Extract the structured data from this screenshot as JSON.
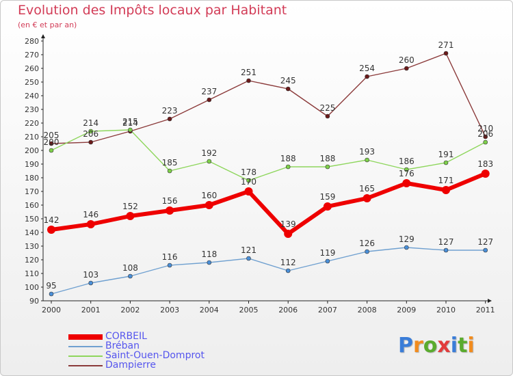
{
  "header": {
    "title": "Evolution des Impôts locaux par Habitant",
    "subtitle": "(en € et par an)"
  },
  "logo": {
    "text": "Proxiti",
    "colors": [
      "#3a7dd8",
      "#f28c1e",
      "#5aab2e",
      "#e23c3c",
      "#3a7dd8",
      "#5aab2e",
      "#f28c1e"
    ]
  },
  "chart_data": {
    "type": "line",
    "categories": [
      "2000",
      "2001",
      "2002",
      "2003",
      "2004",
      "2005",
      "2006",
      "2007",
      "2008",
      "2009",
      "2010",
      "2011"
    ],
    "ylim": [
      90,
      280
    ],
    "yticks": [
      90,
      100,
      110,
      120,
      130,
      140,
      150,
      160,
      170,
      180,
      190,
      200,
      210,
      220,
      230,
      240,
      250,
      260,
      270,
      280
    ],
    "grid": false,
    "legend_position": "bottom-left",
    "series": [
      {
        "name": "CORBEIL",
        "color": "#ee0000",
        "values": [
          142,
          146,
          152,
          156,
          160,
          170,
          139,
          159,
          165,
          176,
          171,
          183
        ]
      },
      {
        "name": "Bréban",
        "color": "#6fa0d0",
        "values": [
          95,
          103,
          108,
          116,
          118,
          121,
          112,
          119,
          126,
          129,
          127,
          127
        ]
      },
      {
        "name": "Saint-Ouen-Domprot",
        "color": "#8ed65c",
        "values": [
          200,
          214,
          215,
          185,
          192,
          178,
          188,
          188,
          193,
          186,
          191,
          206
        ]
      },
      {
        "name": "Dampierre",
        "color": "#8b3a3a",
        "values": [
          205,
          206,
          214,
          223,
          237,
          251,
          245,
          225,
          254,
          260,
          271,
          210
        ]
      }
    ]
  }
}
